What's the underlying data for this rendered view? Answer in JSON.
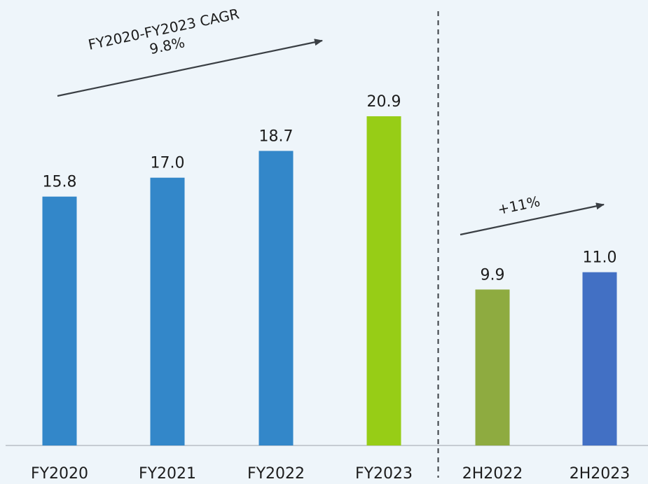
{
  "chart_data": {
    "type": "bar",
    "title": "",
    "xlabel": "",
    "ylabel": "",
    "ylim": [
      0,
      22.5
    ],
    "grid": false,
    "legend": "none",
    "categories": [
      "FY2020",
      "FY2021",
      "FY2022",
      "FY2023",
      "2H2022",
      "2H2023"
    ],
    "values": [
      15.8,
      17.0,
      18.7,
      20.9,
      9.9,
      11.0
    ],
    "value_labels": [
      "15.8",
      "17.0",
      "18.7",
      "20.9",
      "9.9",
      "11.0"
    ],
    "bar_colors": [
      "#3387c9",
      "#3387c9",
      "#3387c9",
      "#97cd16",
      "#8eab40",
      "#4270c4"
    ],
    "divider_between": [
      "FY2023",
      "2H2022"
    ],
    "annotations": [
      {
        "text_lines": [
          "FY2020-FY2023 CAGR",
          "9.8%"
        ],
        "from_category": "FY2020",
        "to_category": "FY2023"
      },
      {
        "text_lines": [
          "+11%"
        ],
        "from_category": "2H2022",
        "to_category": "2H2023"
      }
    ]
  },
  "colors": {
    "background": "#eef5fa",
    "axis": "#b8bfc6",
    "arrow": "#3a3f44",
    "divider": "#3a3f44",
    "text": "#1c1c1c"
  }
}
